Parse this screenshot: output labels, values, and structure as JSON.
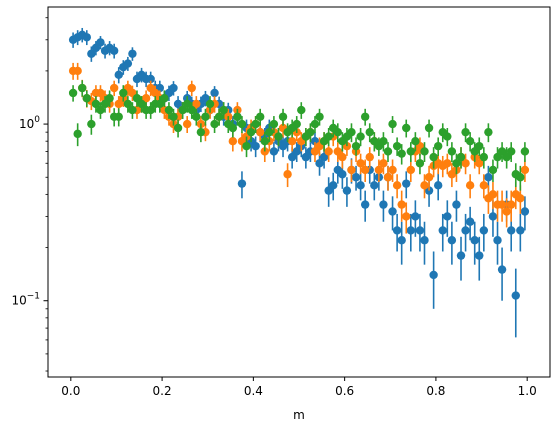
{
  "chart_data": {
    "type": "scatter",
    "title": "",
    "xlabel": "m",
    "ylabel": "",
    "xlim": [
      -0.05,
      1.05
    ],
    "ylim": [
      0.037,
      4.6
    ],
    "yscale": "log",
    "grid": false,
    "legend": "none",
    "x_ticks": [
      0.0,
      0.2,
      0.4,
      0.6,
      0.8,
      1.0
    ],
    "x_tick_labels": [
      "0.0",
      "0.2",
      "0.4",
      "0.6",
      "0.8",
      "1.0"
    ],
    "y_major_ticks": [
      0.1,
      1.0
    ],
    "y_major_tick_labels": [
      "10^-1",
      "10^0"
    ],
    "y_minor_ticks": [
      0.04,
      0.05,
      0.06,
      0.07,
      0.08,
      0.09,
      0.2,
      0.3,
      0.4,
      0.5,
      0.6,
      0.7,
      0.8,
      0.9,
      2,
      3,
      4
    ],
    "series": [
      {
        "color": "#1f77b4",
        "x": [
          0.005,
          0.015,
          0.025,
          0.035,
          0.045,
          0.055,
          0.065,
          0.075,
          0.085,
          0.095,
          0.105,
          0.115,
          0.125,
          0.135,
          0.145,
          0.155,
          0.165,
          0.175,
          0.185,
          0.195,
          0.205,
          0.215,
          0.225,
          0.235,
          0.245,
          0.255,
          0.265,
          0.275,
          0.285,
          0.295,
          0.305,
          0.315,
          0.325,
          0.335,
          0.345,
          0.355,
          0.365,
          0.375,
          0.385,
          0.395,
          0.405,
          0.415,
          0.425,
          0.435,
          0.445,
          0.455,
          0.465,
          0.475,
          0.485,
          0.495,
          0.505,
          0.515,
          0.525,
          0.535,
          0.545,
          0.555,
          0.565,
          0.575,
          0.585,
          0.595,
          0.605,
          0.615,
          0.625,
          0.635,
          0.645,
          0.655,
          0.665,
          0.675,
          0.685,
          0.695,
          0.705,
          0.715,
          0.725,
          0.735,
          0.745,
          0.755,
          0.765,
          0.775,
          0.785,
          0.795,
          0.805,
          0.815,
          0.825,
          0.835,
          0.845,
          0.855,
          0.865,
          0.875,
          0.885,
          0.895,
          0.905,
          0.915,
          0.925,
          0.935,
          0.945,
          0.955,
          0.965,
          0.975,
          0.985,
          0.995
        ],
        "y": [
          3.0,
          3.1,
          3.2,
          3.1,
          2.5,
          2.7,
          2.9,
          2.6,
          2.7,
          2.6,
          1.9,
          2.1,
          2.2,
          2.5,
          1.8,
          1.9,
          1.8,
          1.8,
          1.6,
          1.6,
          1.4,
          1.5,
          1.6,
          1.3,
          1.2,
          1.4,
          1.3,
          1.2,
          1.3,
          1.4,
          1.2,
          1.5,
          1.3,
          1.1,
          1.2,
          1.0,
          1.1,
          0.46,
          0.95,
          0.8,
          0.75,
          0.9,
          0.85,
          0.95,
          0.7,
          0.8,
          0.75,
          0.8,
          0.65,
          0.7,
          0.75,
          0.65,
          0.7,
          0.8,
          0.6,
          0.65,
          0.42,
          0.45,
          0.55,
          0.52,
          0.42,
          0.55,
          0.5,
          0.45,
          0.35,
          0.55,
          0.45,
          0.5,
          0.35,
          0.5,
          0.32,
          0.25,
          0.22,
          0.46,
          0.25,
          0.3,
          0.25,
          0.22,
          0.42,
          0.14,
          0.45,
          0.25,
          0.3,
          0.22,
          0.35,
          0.18,
          0.25,
          0.28,
          0.22,
          0.18,
          0.25,
          0.5,
          0.3,
          0.22,
          0.15,
          0.35,
          0.25,
          0.107,
          0.25,
          0.32
        ],
        "err": [
          0.3,
          0.3,
          0.3,
          0.3,
          0.25,
          0.25,
          0.25,
          0.25,
          0.25,
          0.25,
          0.2,
          0.2,
          0.2,
          0.22,
          0.18,
          0.18,
          0.18,
          0.18,
          0.16,
          0.16,
          0.15,
          0.15,
          0.15,
          0.14,
          0.13,
          0.14,
          0.13,
          0.13,
          0.13,
          0.14,
          0.12,
          0.14,
          0.13,
          0.12,
          0.12,
          0.11,
          0.12,
          0.08,
          0.11,
          0.1,
          0.1,
          0.11,
          0.1,
          0.11,
          0.09,
          0.1,
          0.1,
          0.1,
          0.09,
          0.09,
          0.1,
          0.09,
          0.09,
          0.1,
          0.09,
          0.09,
          0.08,
          0.08,
          0.09,
          0.09,
          0.08,
          0.09,
          0.08,
          0.08,
          0.07,
          0.09,
          0.08,
          0.08,
          0.07,
          0.08,
          0.07,
          0.06,
          0.06,
          0.08,
          0.06,
          0.07,
          0.06,
          0.06,
          0.08,
          0.05,
          0.08,
          0.06,
          0.07,
          0.06,
          0.07,
          0.05,
          0.06,
          0.06,
          0.06,
          0.05,
          0.06,
          0.08,
          0.07,
          0.06,
          0.05,
          0.07,
          0.06,
          0.045,
          0.06,
          0.07
        ]
      },
      {
        "color": "#ff7f0e",
        "x": [
          0.005,
          0.015,
          0.025,
          0.035,
          0.045,
          0.055,
          0.065,
          0.075,
          0.085,
          0.095,
          0.105,
          0.115,
          0.125,
          0.135,
          0.145,
          0.155,
          0.165,
          0.175,
          0.185,
          0.195,
          0.205,
          0.215,
          0.225,
          0.235,
          0.245,
          0.255,
          0.265,
          0.275,
          0.285,
          0.295,
          0.305,
          0.315,
          0.325,
          0.335,
          0.345,
          0.355,
          0.365,
          0.375,
          0.385,
          0.395,
          0.405,
          0.415,
          0.425,
          0.435,
          0.445,
          0.455,
          0.465,
          0.475,
          0.485,
          0.495,
          0.505,
          0.515,
          0.525,
          0.535,
          0.545,
          0.555,
          0.565,
          0.575,
          0.585,
          0.595,
          0.605,
          0.615,
          0.625,
          0.635,
          0.645,
          0.655,
          0.665,
          0.675,
          0.685,
          0.695,
          0.705,
          0.715,
          0.725,
          0.735,
          0.745,
          0.755,
          0.765,
          0.775,
          0.785,
          0.795,
          0.805,
          0.815,
          0.825,
          0.835,
          0.845,
          0.855,
          0.865,
          0.875,
          0.885,
          0.895,
          0.905,
          0.915,
          0.925,
          0.935,
          0.945,
          0.955,
          0.965,
          0.975,
          0.985,
          0.995
        ],
        "y": [
          2.0,
          2.0,
          1.6,
          1.4,
          1.35,
          1.5,
          1.5,
          1.4,
          1.3,
          1.6,
          1.3,
          1.4,
          1.6,
          1.5,
          1.2,
          1.3,
          1.4,
          1.6,
          1.5,
          1.4,
          1.2,
          1.1,
          1.0,
          1.1,
          1.2,
          1.0,
          1.6,
          1.3,
          1.0,
          0.9,
          1.2,
          1.3,
          1.1,
          1.2,
          1.1,
          0.8,
          1.2,
          0.8,
          0.85,
          0.95,
          1.0,
          0.9,
          0.7,
          0.8,
          0.9,
          0.85,
          0.95,
          0.52,
          0.8,
          0.9,
          0.8,
          0.85,
          0.9,
          0.7,
          0.75,
          0.8,
          0.7,
          0.85,
          0.7,
          0.65,
          0.75,
          0.55,
          0.7,
          0.6,
          0.55,
          0.65,
          0.8,
          0.55,
          0.6,
          0.5,
          0.55,
          0.45,
          0.35,
          0.3,
          0.55,
          0.7,
          0.75,
          0.45,
          0.5,
          0.58,
          0.6,
          0.58,
          0.6,
          0.52,
          0.55,
          0.65,
          0.6,
          0.45,
          0.65,
          0.6,
          0.45,
          0.38,
          0.4,
          0.35,
          0.35,
          0.32,
          0.35,
          0.4,
          0.38,
          0.55
        ],
        "err": [
          0.22,
          0.22,
          0.18,
          0.16,
          0.15,
          0.16,
          0.16,
          0.15,
          0.14,
          0.16,
          0.14,
          0.15,
          0.16,
          0.15,
          0.13,
          0.14,
          0.15,
          0.16,
          0.15,
          0.15,
          0.13,
          0.12,
          0.11,
          0.12,
          0.13,
          0.11,
          0.16,
          0.14,
          0.11,
          0.1,
          0.13,
          0.14,
          0.12,
          0.13,
          0.12,
          0.1,
          0.13,
          0.1,
          0.1,
          0.11,
          0.11,
          0.1,
          0.09,
          0.1,
          0.1,
          0.1,
          0.11,
          0.08,
          0.1,
          0.1,
          0.1,
          0.1,
          0.1,
          0.09,
          0.09,
          0.1,
          0.09,
          0.1,
          0.09,
          0.09,
          0.09,
          0.08,
          0.09,
          0.08,
          0.08,
          0.09,
          0.1,
          0.08,
          0.08,
          0.08,
          0.08,
          0.07,
          0.07,
          0.06,
          0.08,
          0.09,
          0.09,
          0.07,
          0.08,
          0.08,
          0.08,
          0.08,
          0.08,
          0.08,
          0.08,
          0.09,
          0.08,
          0.07,
          0.09,
          0.08,
          0.07,
          0.07,
          0.07,
          0.07,
          0.07,
          0.06,
          0.07,
          0.07,
          0.07,
          0.08
        ]
      },
      {
        "color": "#2ca02c",
        "x": [
          0.005,
          0.015,
          0.025,
          0.035,
          0.045,
          0.055,
          0.065,
          0.075,
          0.085,
          0.095,
          0.105,
          0.115,
          0.125,
          0.135,
          0.145,
          0.155,
          0.165,
          0.175,
          0.185,
          0.195,
          0.205,
          0.215,
          0.225,
          0.235,
          0.245,
          0.255,
          0.265,
          0.275,
          0.285,
          0.295,
          0.305,
          0.315,
          0.325,
          0.335,
          0.345,
          0.355,
          0.365,
          0.375,
          0.385,
          0.395,
          0.405,
          0.415,
          0.425,
          0.435,
          0.445,
          0.455,
          0.465,
          0.475,
          0.485,
          0.495,
          0.505,
          0.515,
          0.525,
          0.535,
          0.545,
          0.555,
          0.565,
          0.575,
          0.585,
          0.595,
          0.605,
          0.615,
          0.625,
          0.635,
          0.645,
          0.655,
          0.665,
          0.675,
          0.685,
          0.695,
          0.705,
          0.715,
          0.725,
          0.735,
          0.745,
          0.755,
          0.765,
          0.775,
          0.785,
          0.795,
          0.805,
          0.815,
          0.825,
          0.835,
          0.845,
          0.855,
          0.865,
          0.875,
          0.885,
          0.895,
          0.905,
          0.915,
          0.925,
          0.935,
          0.945,
          0.955,
          0.965,
          0.975,
          0.985,
          0.995
        ],
        "y": [
          1.5,
          0.88,
          1.6,
          1.4,
          1.0,
          1.3,
          1.2,
          1.3,
          1.4,
          1.1,
          1.1,
          1.5,
          1.3,
          1.2,
          1.4,
          1.3,
          1.2,
          1.2,
          1.3,
          1.3,
          1.4,
          1.2,
          1.1,
          0.95,
          1.2,
          1.3,
          1.2,
          1.1,
          0.9,
          1.1,
          1.3,
          1.0,
          1.1,
          1.2,
          1.0,
          0.95,
          1.1,
          1.0,
          0.75,
          0.9,
          1.0,
          1.1,
          0.8,
          0.9,
          1.0,
          0.85,
          1.1,
          0.9,
          0.95,
          1.0,
          1.2,
          0.85,
          0.9,
          1.0,
          1.1,
          0.8,
          0.85,
          0.95,
          0.9,
          0.8,
          0.85,
          0.9,
          0.75,
          0.85,
          1.1,
          0.9,
          0.8,
          0.75,
          0.8,
          0.7,
          1.0,
          0.75,
          0.68,
          0.95,
          0.7,
          0.8,
          0.6,
          0.7,
          0.95,
          0.65,
          0.75,
          0.9,
          0.85,
          0.7,
          0.6,
          0.65,
          0.9,
          0.8,
          0.7,
          0.75,
          0.65,
          0.9,
          0.55,
          0.65,
          0.7,
          0.65,
          0.7,
          0.52,
          0.5,
          0.7
        ],
        "err": [
          0.16,
          0.13,
          0.17,
          0.15,
          0.13,
          0.14,
          0.13,
          0.14,
          0.15,
          0.13,
          0.13,
          0.16,
          0.14,
          0.13,
          0.15,
          0.14,
          0.13,
          0.13,
          0.14,
          0.14,
          0.15,
          0.13,
          0.12,
          0.11,
          0.13,
          0.14,
          0.13,
          0.12,
          0.11,
          0.12,
          0.14,
          0.11,
          0.12,
          0.13,
          0.11,
          0.11,
          0.12,
          0.11,
          0.1,
          0.11,
          0.11,
          0.12,
          0.1,
          0.11,
          0.11,
          0.1,
          0.12,
          0.11,
          0.11,
          0.11,
          0.13,
          0.1,
          0.11,
          0.11,
          0.12,
          0.1,
          0.1,
          0.11,
          0.11,
          0.1,
          0.1,
          0.11,
          0.09,
          0.1,
          0.12,
          0.11,
          0.1,
          0.09,
          0.1,
          0.09,
          0.11,
          0.09,
          0.09,
          0.11,
          0.09,
          0.1,
          0.08,
          0.09,
          0.11,
          0.09,
          0.09,
          0.11,
          0.1,
          0.09,
          0.08,
          0.09,
          0.11,
          0.1,
          0.09,
          0.09,
          0.09,
          0.11,
          0.08,
          0.09,
          0.09,
          0.09,
          0.09,
          0.08,
          0.08,
          0.09
        ]
      }
    ]
  }
}
